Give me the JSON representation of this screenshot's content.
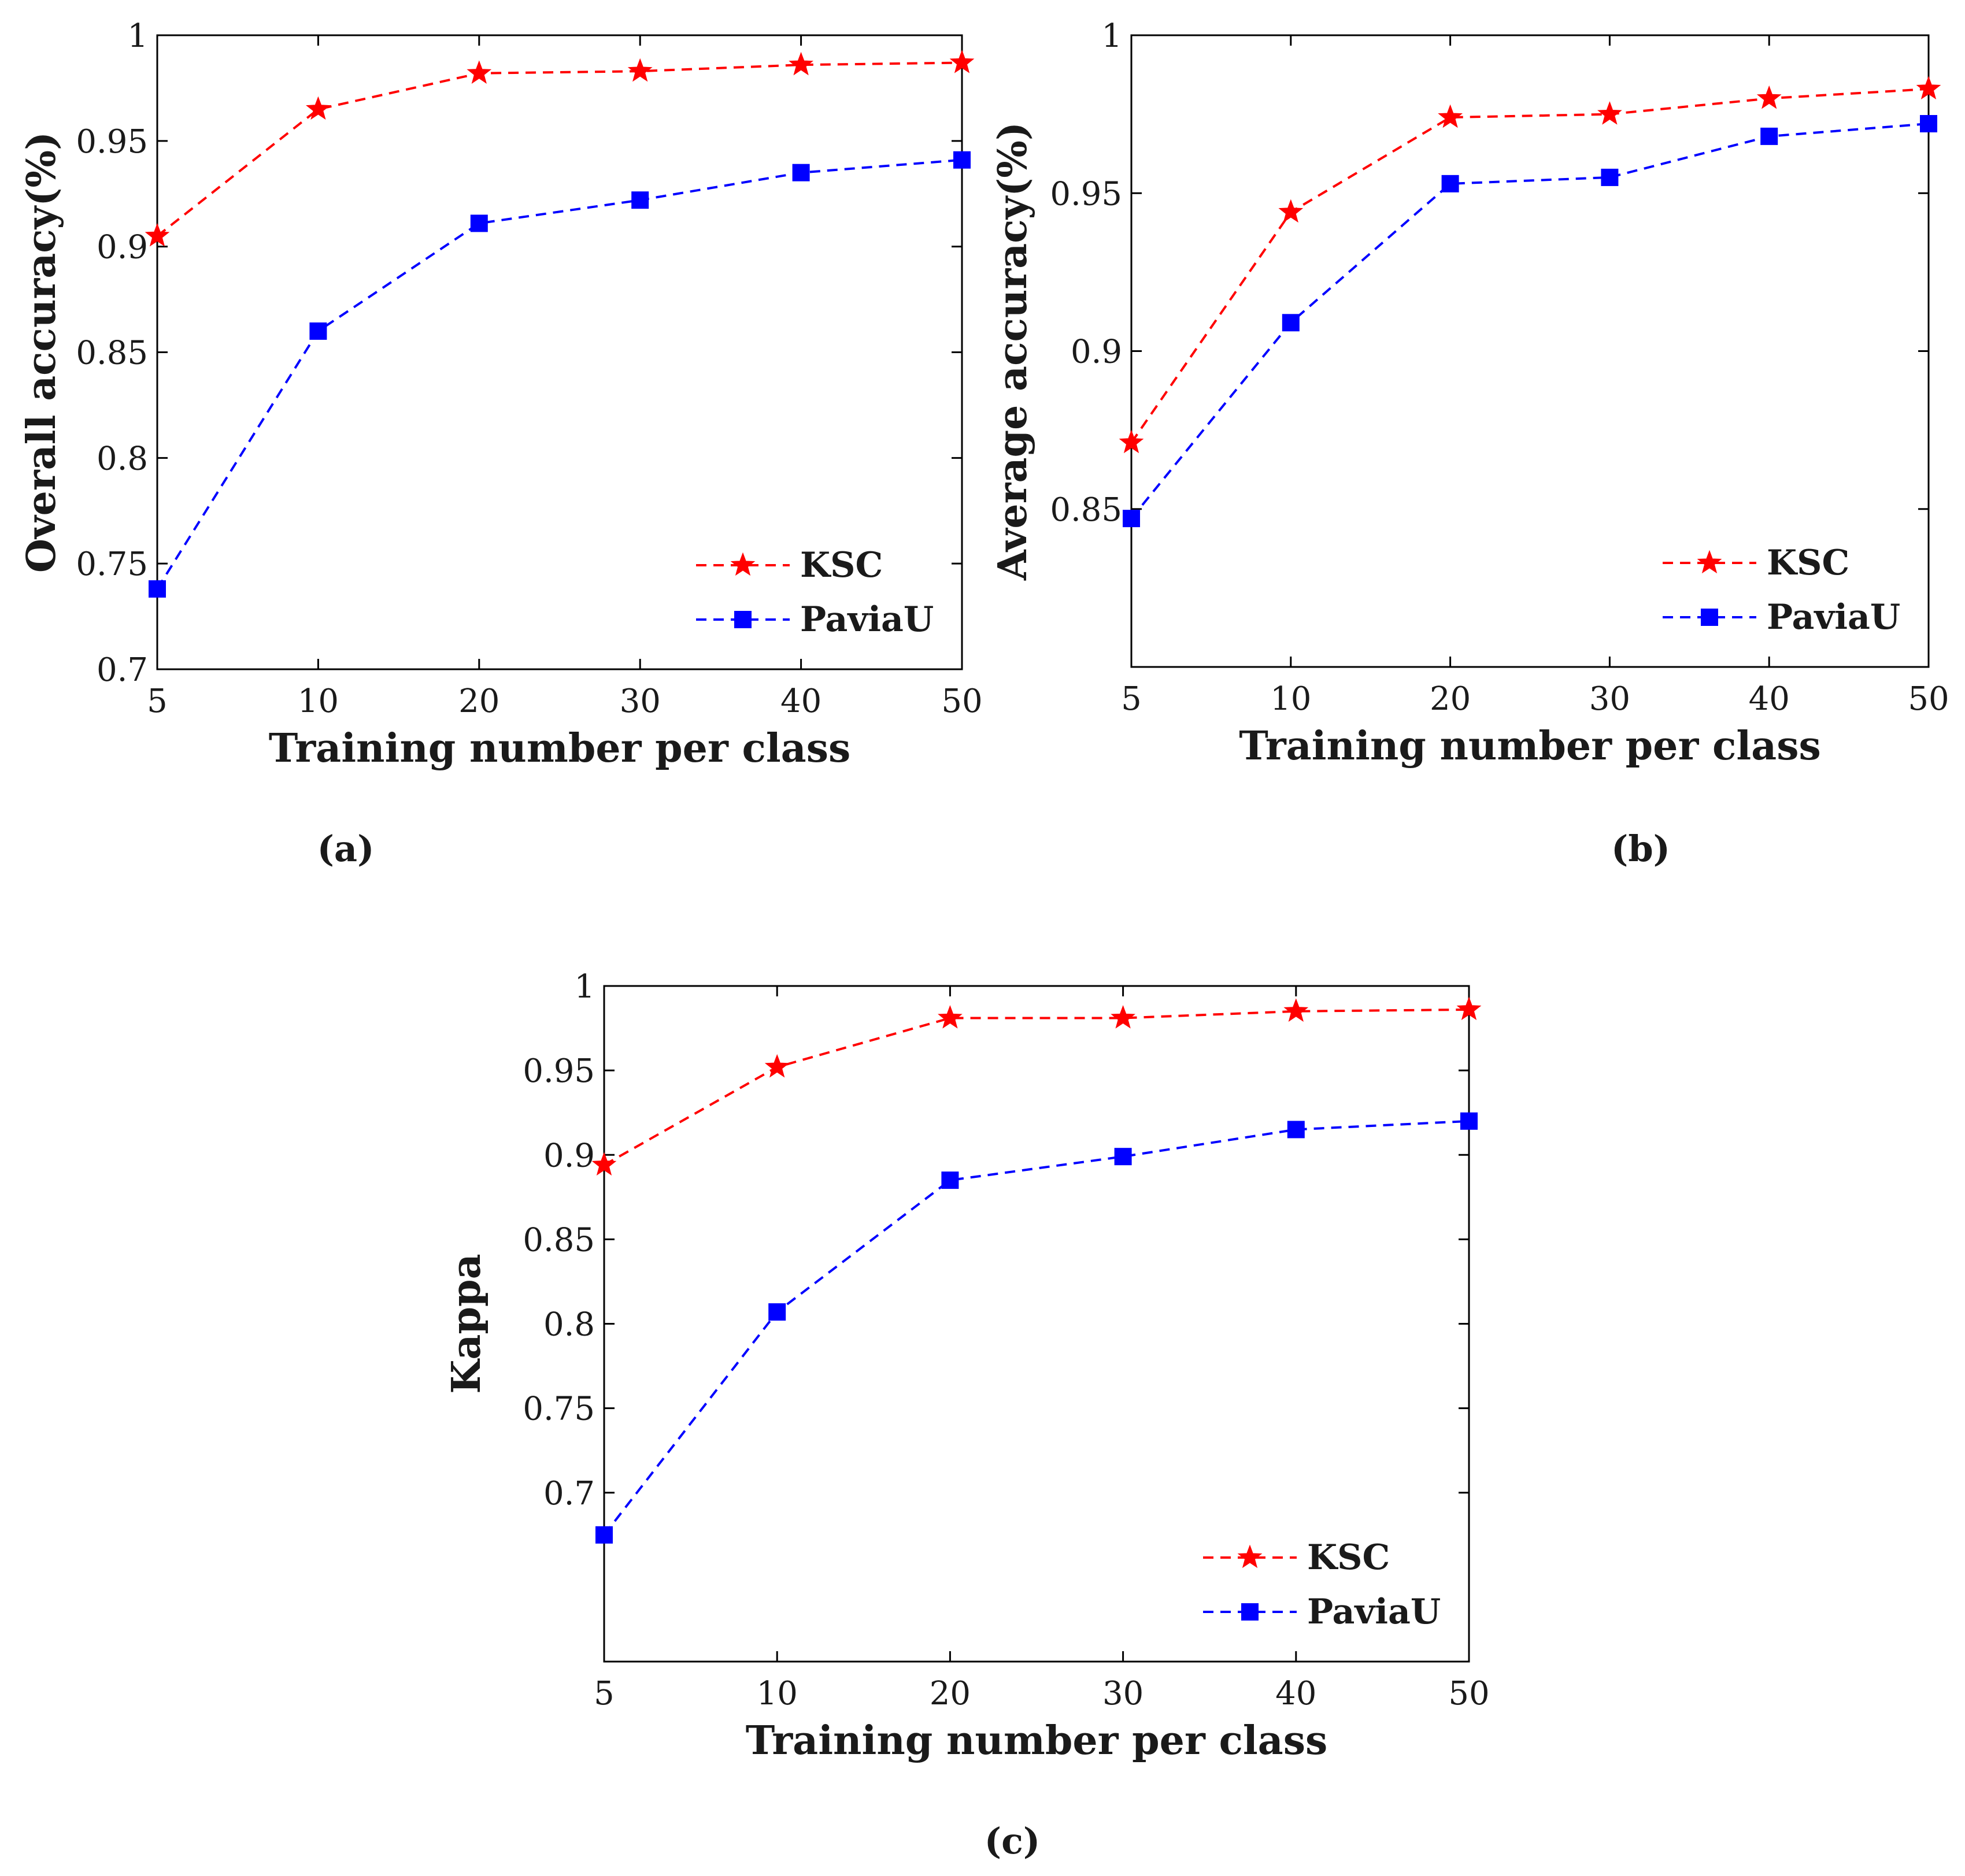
{
  "figure": {
    "colors": {
      "ksc": "#ff0000",
      "paviau": "#0000ff",
      "axis": "#000000"
    }
  },
  "chart_data": [
    {
      "type": "line",
      "panel_label": "(a)",
      "title": "",
      "xlabel": "Training number per class",
      "ylabel": "Overall accuracy(%)",
      "categories": [
        "5",
        "10",
        "20",
        "30",
        "40",
        "50"
      ],
      "ylim": [
        0.7,
        1.0
      ],
      "yticks": [
        0.7,
        0.75,
        0.8,
        0.85,
        0.9,
        0.95,
        1
      ],
      "ytick_labels": [
        "0.7",
        "0.75",
        "0.8",
        "0.85",
        "0.9",
        "0.95",
        "1"
      ],
      "legend_position": "bottom-right",
      "series": [
        {
          "name": "KSC",
          "color": "#ff0000",
          "marker": "star",
          "line": "dashed",
          "values": [
            0.905,
            0.965,
            0.982,
            0.983,
            0.986,
            0.987
          ]
        },
        {
          "name": "PaviaU",
          "color": "#0000ff",
          "marker": "square",
          "line": "dashed",
          "values": [
            0.738,
            0.86,
            0.911,
            0.922,
            0.935,
            0.941
          ]
        }
      ]
    },
    {
      "type": "line",
      "panel_label": "(b)",
      "title": "",
      "xlabel": "Training number per class",
      "ylabel": "Average accuracy(%)",
      "categories": [
        "5",
        "10",
        "20",
        "30",
        "40",
        "50"
      ],
      "ylim": [
        0.8,
        1.0
      ],
      "yticks": [
        0.85,
        0.9,
        0.95,
        1
      ],
      "ytick_labels": [
        "0.85",
        "0.9",
        "0.95",
        "1"
      ],
      "legend_position": "bottom-right",
      "series": [
        {
          "name": "KSC",
          "color": "#ff0000",
          "marker": "star",
          "line": "dashed",
          "values": [
            0.871,
            0.944,
            0.974,
            0.975,
            0.98,
            0.983
          ]
        },
        {
          "name": "PaviaU",
          "color": "#0000ff",
          "marker": "square",
          "line": "dashed",
          "values": [
            0.847,
            0.909,
            0.953,
            0.955,
            0.968,
            0.972
          ]
        }
      ]
    },
    {
      "type": "line",
      "panel_label": "(c)",
      "title": "",
      "xlabel": "Training number per class",
      "ylabel": "Kappa",
      "categories": [
        "5",
        "10",
        "20",
        "30",
        "40",
        "50"
      ],
      "ylim": [
        0.6,
        1.0
      ],
      "yticks": [
        0.7,
        0.75,
        0.8,
        0.85,
        0.9,
        0.95,
        1
      ],
      "ytick_labels": [
        "0.7",
        "0.75",
        "0.8",
        "0.85",
        "0.9",
        "0.95",
        "1"
      ],
      "legend_position": "bottom-right",
      "series": [
        {
          "name": "KSC",
          "color": "#ff0000",
          "marker": "star",
          "line": "dashed",
          "values": [
            0.894,
            0.952,
            0.981,
            0.981,
            0.985,
            0.986
          ]
        },
        {
          "name": "PaviaU",
          "color": "#0000ff",
          "marker": "square",
          "line": "dashed",
          "values": [
            0.675,
            0.807,
            0.885,
            0.899,
            0.915,
            0.92
          ]
        }
      ]
    }
  ]
}
